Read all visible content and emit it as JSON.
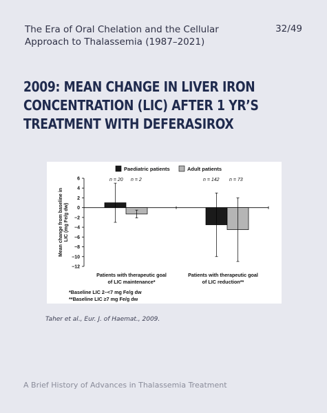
{
  "header": {
    "title": "The Era of Oral Chelation and the Cellular\nApproach to Thalassemia  (1987–2021)",
    "page": "32/49"
  },
  "slide_title": "2009: Mean change in liver iron concentration (LIC) after 1 yr’s treatment with deferasirox",
  "citation": "Taher et al.,  Eur. J. of Haemat., 2009.",
  "footer": "A Brief History of Advances in Thalassemia Treatment",
  "chart_data": {
    "type": "bar",
    "ylabel_line1": "Mean change from baseline in",
    "ylabel_line2": "LIC (mg Fe/g dw)",
    "ylim": [
      -12,
      6
    ],
    "yticks": [
      6,
      4,
      2,
      0,
      -2,
      -4,
      -6,
      -8,
      -10,
      -12
    ],
    "grid": false,
    "legend_position": "top",
    "legend_colors": [
      "#1a1a1a",
      "#b5b5b5"
    ],
    "series": [
      {
        "name": "Paediatric patients",
        "values": [
          1.0,
          -3.5
        ],
        "error": [
          4.0,
          6.5
        ],
        "n_labels": [
          "n = 20",
          "n = 142"
        ]
      },
      {
        "name": "Adult patients",
        "values": [
          -1.3,
          -4.5
        ],
        "error": [
          0.8,
          6.5
        ],
        "n_labels": [
          "n = 2",
          "n = 73"
        ]
      }
    ],
    "categories": [
      {
        "line1": "Patients with therapeutic goal",
        "line2": "of LIC maintenance*"
      },
      {
        "line1": "Patients with therapeutic goal",
        "line2": "of LIC reduction**"
      }
    ],
    "footnotes": [
      "*Baseline LIC 2–<7 mg Fe/g dw",
      "**Baseline LIC  ≥7 mg Fe/g dw"
    ]
  }
}
